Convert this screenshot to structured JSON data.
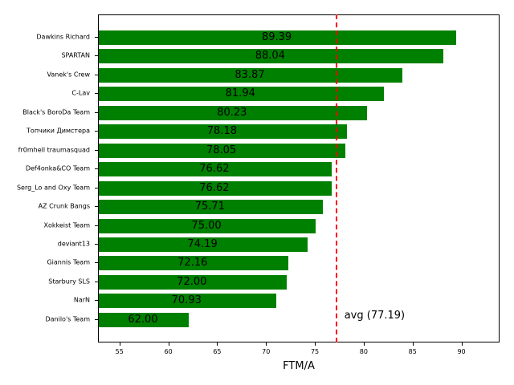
{
  "chart_data": {
    "type": "bar",
    "orientation": "horizontal",
    "title": "",
    "xlabel": "FTM/A",
    "ylabel": "",
    "xlim": [
      52.8,
      93.9
    ],
    "xticks": [
      55,
      60,
      65,
      70,
      75,
      80,
      85,
      90
    ],
    "grid": false,
    "bar_color": "#008000",
    "categories": [
      "Dawkins Richard",
      "SPARTAN",
      "Vanek's Crew",
      "C-Lav",
      "Black's BoroDa Team",
      "Топчики Димстера",
      "fr0mhell traumasquad",
      "Def4onka&CO Team",
      "Serg_Lo and Oxy Team",
      "AZ Crunk Bangs",
      "Xokkeist Team",
      "deviant13",
      "Giannis Team",
      "Starbury SLS",
      "NarN",
      "Danilo's Team"
    ],
    "values": [
      89.39,
      88.04,
      83.87,
      81.94,
      80.23,
      78.18,
      78.05,
      76.62,
      76.62,
      75.71,
      75.0,
      74.19,
      72.16,
      72.0,
      70.93,
      62.0
    ],
    "value_labels": [
      "89.39",
      "88.04",
      "83.87",
      "81.94",
      "80.23",
      "78.18",
      "78.05",
      "76.62",
      "76.62",
      "75.71",
      "75.00",
      "74.19",
      "72.16",
      "72.00",
      "70.93",
      "62.00"
    ],
    "reference_line": {
      "value": 77.19,
      "label": "avg (77.19)",
      "color": "#ff0000",
      "style": "dashed"
    }
  }
}
